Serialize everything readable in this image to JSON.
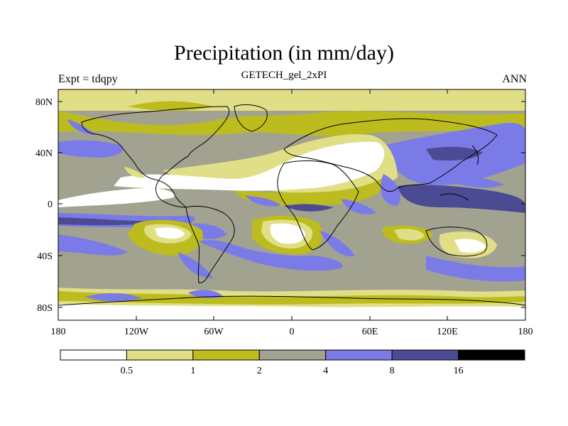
{
  "title": "Precipitation (in mm/day)",
  "subtitle": "GETECH_gel_2xPI",
  "left_label": "Expt = tdqpy",
  "right_label": "ANN",
  "lat_labels": [
    "80N",
    "40N",
    "0",
    "40S",
    "80S"
  ],
  "lon_labels": [
    "180",
    "120W",
    "60W",
    "0",
    "60E",
    "120E",
    "180"
  ],
  "colorbar": {
    "colors": [
      "#ffffff",
      "#e0df87",
      "#bcbc1e",
      "#a2a290",
      "#7b7be8",
      "#4b4b93",
      "#000000"
    ],
    "labels": [
      "0.5",
      "1",
      "2",
      "4",
      "8",
      "16"
    ]
  },
  "legend_colors": {
    "lt05": "#ffffff",
    "r05_1": "#e0df87",
    "r1_2": "#bcbc1e",
    "r2_4": "#a2a290",
    "r4_8": "#7b7be8",
    "r8_16": "#4b4b93"
  }
}
